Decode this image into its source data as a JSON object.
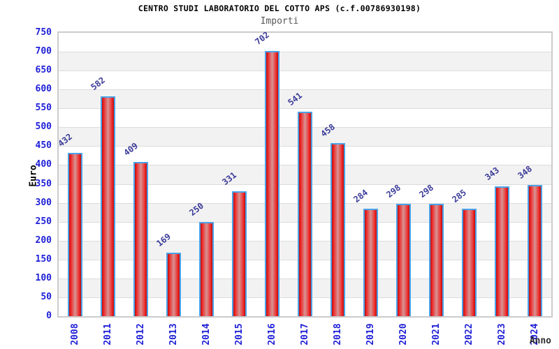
{
  "header": {
    "title": "CENTRO STUDI LABORATORIO DEL COTTO APS (c.f.00786930198)",
    "subtitle": "Importi"
  },
  "chart_data": {
    "type": "bar",
    "title": "CENTRO STUDI LABORATORIO DEL COTTO APS (c.f.00786930198)",
    "subtitle": "Importi",
    "xlabel": "Anno",
    "ylabel": "Euro",
    "categories": [
      "2008",
      "2011",
      "2012",
      "2013",
      "2014",
      "2015",
      "2016",
      "2017",
      "2018",
      "2019",
      "2020",
      "2021",
      "2022",
      "2023",
      "2024"
    ],
    "values": [
      432,
      582,
      409,
      169,
      250,
      331,
      702,
      541,
      458,
      284,
      298,
      298,
      285,
      343,
      348
    ],
    "ylim": [
      0,
      750
    ],
    "ytick_step": 50,
    "grid": true,
    "alternating_bands": true,
    "legend_position": "none",
    "colors": {
      "bar_edge": "#b60d0d",
      "bar_bright": "#ee2424",
      "bar_center": "#d89494",
      "bar_border": "#4aa2e8",
      "axis_tick_label": "#1f1fd8",
      "value_label": "#3a3a99",
      "band_gray": "#f2f2f2",
      "gridline": "#dcdcdc",
      "plot_border": "#cccccc",
      "title": "#000000",
      "subtitle": "#575757"
    }
  }
}
